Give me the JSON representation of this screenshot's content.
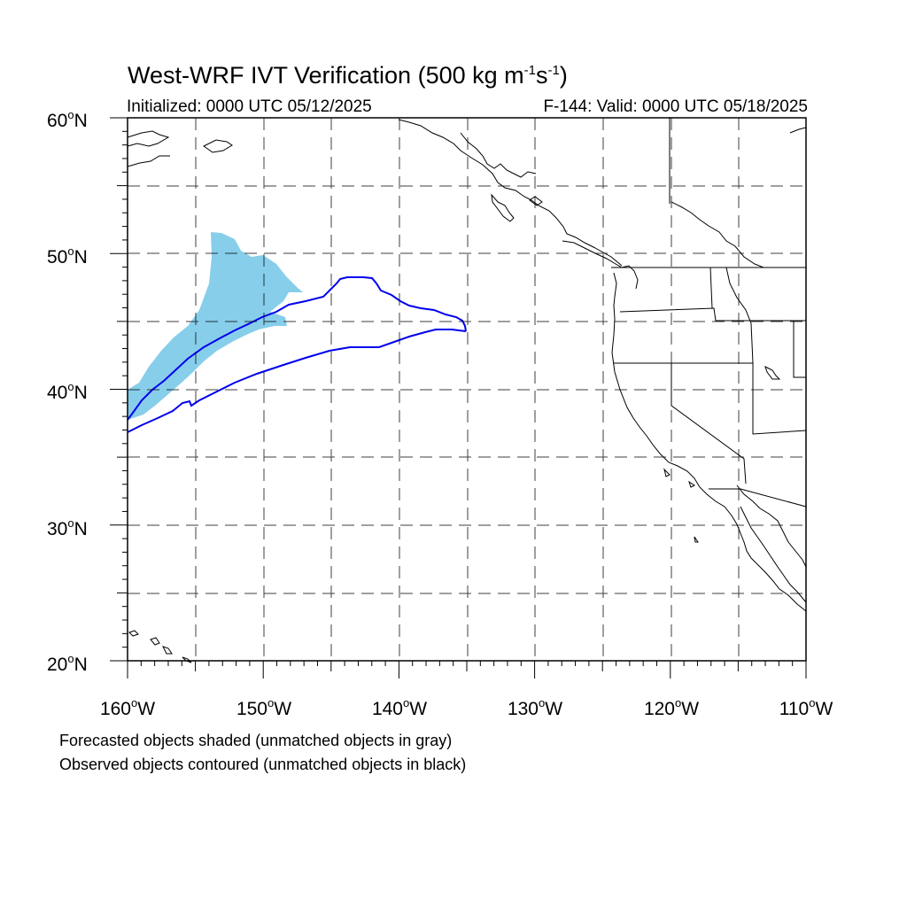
{
  "title": {
    "main": "West-WRF IVT Verification (500 kg m",
    "exp1": "-1",
    "mid": "s",
    "exp2": "-1",
    "end": ")"
  },
  "subtitle_left": "Initialized: 0000 UTC 05/12/2025",
  "subtitle_right": "F-144: Valid: 0000 UTC 05/18/2025",
  "lat_labels": [
    {
      "num": "60",
      "hemi": "N"
    },
    {
      "num": "50",
      "hemi": "N"
    },
    {
      "num": "40",
      "hemi": "N"
    },
    {
      "num": "30",
      "hemi": "N"
    },
    {
      "num": "20",
      "hemi": "N"
    }
  ],
  "lon_labels": [
    {
      "num": "160",
      "hemi": "W"
    },
    {
      "num": "150",
      "hemi": "W"
    },
    {
      "num": "140",
      "hemi": "W"
    },
    {
      "num": "130",
      "hemi": "W"
    },
    {
      "num": "120",
      "hemi": "W"
    },
    {
      "num": "110",
      "hemi": "W"
    }
  ],
  "deg_symbol": "o",
  "notes": [
    "Forecasted objects shaded (unmatched objects in gray)",
    "Observed objects contoured (unmatched objects in black)"
  ],
  "map": {
    "lon_range": [
      -160,
      -110
    ],
    "lat_range": [
      20,
      60
    ],
    "grid": true,
    "grid_step_deg": 5
  },
  "colors": {
    "forecast_fill": "#87ceeb",
    "observed_contour": "#0000ee",
    "coastline": "#000000",
    "grid": "#000000"
  }
}
